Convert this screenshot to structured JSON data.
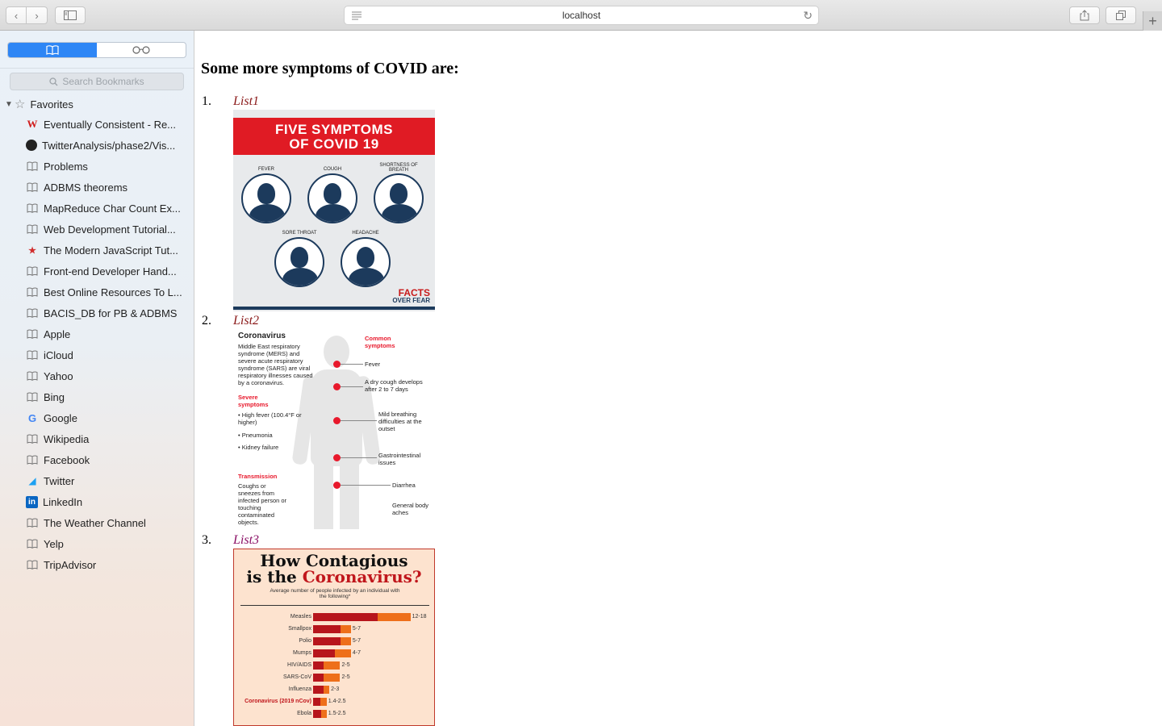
{
  "browser": {
    "url": "localhost",
    "new_tab_symbol": "+"
  },
  "sidebar": {
    "search_placeholder": "Search Bookmarks",
    "favorites_label": "Favorites",
    "bookmarks": [
      {
        "label": "Eventually Consistent - Re...",
        "icon": "w-logo-icon"
      },
      {
        "label": "TwitterAnalysis/phase2/Vis...",
        "icon": "github-icon"
      },
      {
        "label": "Problems",
        "icon": "bookmark-icon"
      },
      {
        "label": "ADBMS theorems",
        "icon": "bookmark-icon"
      },
      {
        "label": "MapReduce Char Count Ex...",
        "icon": "bookmark-icon"
      },
      {
        "label": "Web Development Tutorial...",
        "icon": "bookmark-icon"
      },
      {
        "label": "The Modern JavaScript Tut...",
        "icon": "javascript-info-icon"
      },
      {
        "label": "Front-end Developer Hand...",
        "icon": "bookmark-icon"
      },
      {
        "label": "Best Online Resources To L...",
        "icon": "bookmark-icon"
      },
      {
        "label": "BACIS_DB for PB & ADBMS",
        "icon": "bookmark-icon"
      },
      {
        "label": "Apple",
        "icon": "bookmark-icon"
      },
      {
        "label": "iCloud",
        "icon": "bookmark-icon"
      },
      {
        "label": "Yahoo",
        "icon": "bookmark-icon"
      },
      {
        "label": "Bing",
        "icon": "bookmark-icon"
      },
      {
        "label": "Google",
        "icon": "google-icon"
      },
      {
        "label": "Wikipedia",
        "icon": "bookmark-icon"
      },
      {
        "label": "Facebook",
        "icon": "bookmark-icon"
      },
      {
        "label": "Twitter",
        "icon": "twitter-icon"
      },
      {
        "label": "LinkedIn",
        "icon": "linkedin-icon"
      },
      {
        "label": "The Weather Channel",
        "icon": "bookmark-icon"
      },
      {
        "label": "Yelp",
        "icon": "bookmark-icon"
      },
      {
        "label": "TripAdvisor",
        "icon": "bookmark-icon"
      }
    ]
  },
  "page": {
    "heading": "Some more symptoms of COVID are:",
    "items": [
      {
        "number": "1.",
        "link": "List1"
      },
      {
        "number": "2.",
        "link": "List2"
      },
      {
        "number": "3.",
        "link": "List3"
      }
    ],
    "image1": {
      "title_line1": "FIVE SYMPTOMS",
      "title_line2": "OF COVID 19",
      "symptoms": [
        "FEVER",
        "COUGH",
        "SHORTNESS OF BREATH",
        "SORE THROAT",
        "HEADACHE"
      ],
      "brand_line1": "FACTS",
      "brand_line2": "OVER FEAR"
    },
    "image2": {
      "title": "Coronavirus",
      "intro": "Middle East respiratory syndrome (MERS) and severe acute respiratory syndrome (SARS) are viral respiratory illnesses caused by a coronavirus.",
      "severe_heading": "Severe symptoms",
      "severe_items": [
        "High fever (100.4°F or higher)",
        "Pneumonia",
        "Kidney failure"
      ],
      "transmission_heading": "Transmission",
      "transmission_text": "Coughs or sneezes from infected person or touching contaminated objects.",
      "common_heading": "Common symptoms",
      "common_items": [
        "Fever",
        "A dry cough develops after 2 to 7 days",
        "Mild breathing difficulties at the outset",
        "Gastrointestinal issues",
        "Diarrhea",
        "General body aches"
      ]
    },
    "image3": {
      "title_line1": "How Contagious",
      "title_line2_prefix": "is the ",
      "title_line2_highlight": "Coronavirus?",
      "subtitle": "Average number of people infected by an individual with the following*"
    }
  },
  "chart_data": {
    "type": "bar",
    "title": "How Contagious is the Coronavirus?",
    "subtitle": "Average number of people infected by an individual with the following*",
    "categories": [
      "Measles",
      "Smallpox",
      "Polio",
      "Mumps",
      "HIV/AIDS",
      "SARS-CoV",
      "Influenza",
      "Coronavirus (2019 nCov)",
      "Ebola"
    ],
    "ranges": [
      [
        12,
        18
      ],
      [
        5,
        7
      ],
      [
        5,
        7
      ],
      [
        4,
        7
      ],
      [
        2,
        5
      ],
      [
        2,
        5
      ],
      [
        2,
        3
      ],
      [
        1.4,
        2.5
      ],
      [
        1.5,
        2.5
      ]
    ],
    "labels": [
      "12-18",
      "5-7",
      "5-7",
      "4-7",
      "2-5",
      "2-5",
      "2-3",
      "1.4-2.5",
      "1.5-2.5"
    ],
    "highlight": "Coronavirus (2019 nCov)",
    "colors": {
      "low": "#b7151c",
      "high": "#ee6f1a",
      "background": "#fde3cf"
    }
  }
}
